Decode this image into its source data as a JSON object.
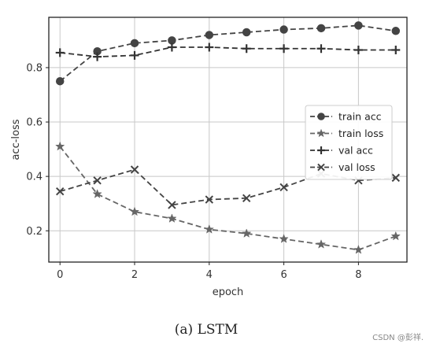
{
  "chart_data": {
    "type": "line",
    "xlabel": "epoch",
    "ylabel": "acc-loss",
    "x": [
      0,
      1,
      2,
      3,
      4,
      5,
      6,
      7,
      8,
      9
    ],
    "xlim": [
      -0.3,
      9.3
    ],
    "ylim": [
      0.085,
      0.985
    ],
    "xticks": [
      "0",
      "2",
      "4",
      "6",
      "8"
    ],
    "yticks": [
      "0.2",
      "0.4",
      "0.6",
      "0.8"
    ],
    "grid": true,
    "legend_position": "center-right",
    "series": [
      {
        "name": "train acc",
        "marker": "circle",
        "color": "#444444",
        "values": [
          0.75,
          0.86,
          0.89,
          0.9,
          0.92,
          0.93,
          0.94,
          0.945,
          0.955,
          0.935
        ]
      },
      {
        "name": "train loss",
        "marker": "star",
        "color": "#666666",
        "values": [
          0.51,
          0.335,
          0.27,
          0.245,
          0.205,
          0.19,
          0.17,
          0.15,
          0.13,
          0.18
        ]
      },
      {
        "name": "val acc",
        "marker": "plus",
        "color": "#333333",
        "values": [
          0.855,
          0.84,
          0.845,
          0.875,
          0.875,
          0.87,
          0.87,
          0.87,
          0.865,
          0.865
        ]
      },
      {
        "name": "val loss",
        "marker": "x",
        "color": "#444444",
        "values": [
          0.345,
          0.385,
          0.425,
          0.295,
          0.315,
          0.32,
          0.36,
          0.41,
          0.385,
          0.395
        ]
      }
    ]
  },
  "caption": "(a) LSTM",
  "watermark": "CSDN @彭祥."
}
